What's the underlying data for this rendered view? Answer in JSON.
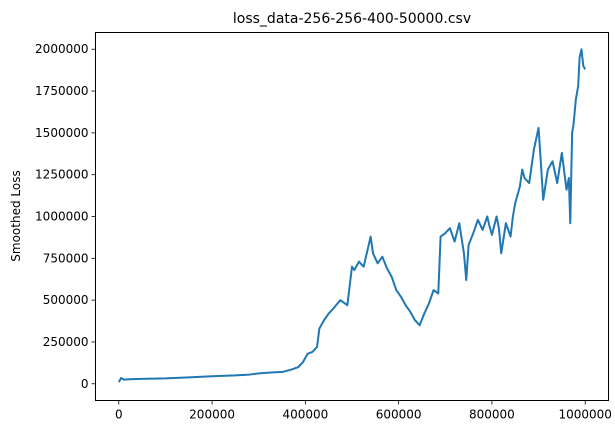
{
  "chart_data": {
    "type": "line",
    "title": "loss_data-256-256-400-50000.csv",
    "xlabel": "",
    "ylabel": "Smoothed Loss",
    "xlim": [
      -50000,
      1050000
    ],
    "ylim": [
      -100000,
      2100000
    ],
    "x_ticks": [
      0,
      200000,
      400000,
      600000,
      800000,
      1000000
    ],
    "x_tick_labels": [
      "0",
      "200000",
      "400000",
      "600000",
      "800000",
      "1000000"
    ],
    "y_ticks": [
      0,
      250000,
      500000,
      750000,
      1000000,
      1250000,
      1500000,
      1750000,
      2000000
    ],
    "y_tick_labels": [
      "0",
      "250000",
      "500000",
      "750000",
      "1000000",
      "1250000",
      "1500000",
      "1750000",
      "2000000"
    ],
    "grid": false,
    "legend": "none",
    "color": "#1f77b4",
    "series": [
      {
        "x": [
          0,
          5000,
          10000,
          30000,
          60000,
          100000,
          150000,
          200000,
          250000,
          280000,
          300000,
          330000,
          350000,
          370000,
          385000,
          395000,
          405000,
          415000,
          425000,
          430000,
          440000,
          450000,
          460000,
          475000,
          490000,
          500000,
          505000,
          515000,
          525000,
          535000,
          540000,
          545000,
          555000,
          565000,
          575000,
          585000,
          595000,
          605000,
          615000,
          625000,
          635000,
          645000,
          655000,
          665000,
          675000,
          685000,
          690000,
          700000,
          710000,
          720000,
          730000,
          740000,
          745000,
          750000,
          760000,
          770000,
          780000,
          790000,
          795000,
          800000,
          810000,
          815000,
          820000,
          830000,
          840000,
          845000,
          850000,
          860000,
          865000,
          870000,
          880000,
          890000,
          900000,
          905000,
          910000,
          920000,
          930000,
          940000,
          950000,
          960000,
          965000,
          968000,
          972000,
          975000,
          980000,
          985000,
          988000,
          992000,
          996000,
          1000000
        ],
        "y": [
          10000,
          35000,
          25000,
          28000,
          30000,
          32000,
          38000,
          45000,
          50000,
          55000,
          62000,
          68000,
          70000,
          85000,
          100000,
          130000,
          180000,
          190000,
          220000,
          330000,
          380000,
          420000,
          450000,
          500000,
          470000,
          700000,
          680000,
          730000,
          700000,
          820000,
          880000,
          780000,
          720000,
          760000,
          690000,
          640000,
          560000,
          520000,
          470000,
          430000,
          380000,
          350000,
          420000,
          480000,
          560000,
          540000,
          880000,
          900000,
          930000,
          850000,
          960000,
          780000,
          620000,
          830000,
          900000,
          980000,
          920000,
          1000000,
          940000,
          890000,
          1000000,
          930000,
          780000,
          960000,
          880000,
          1000000,
          1080000,
          1180000,
          1280000,
          1230000,
          1200000,
          1400000,
          1530000,
          1320000,
          1100000,
          1280000,
          1330000,
          1200000,
          1380000,
          1160000,
          1230000,
          960000,
          1500000,
          1550000,
          1700000,
          1780000,
          1950000,
          2000000,
          1900000,
          1880000
        ]
      }
    ]
  }
}
